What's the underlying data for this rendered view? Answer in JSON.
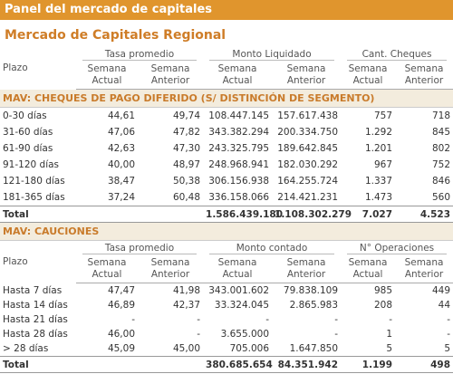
{
  "header": {
    "title": "Panel del mercado de capitales"
  },
  "subtitle": "Mercado de Capitales Regional",
  "sections": [
    {
      "title": "MAV: CHEQUES DE PAGO DIFERIDO (S/ DISTINCIÓN DE SEGMENTO)",
      "row_header": "Plazo",
      "groups": [
        "Tasa promedio",
        "Monto Liquidado",
        "Cant. Cheques"
      ],
      "subheaders": [
        "Semana Actual",
        "Semana Anterior",
        "Semana Actual",
        "Semana Anterior",
        "Semana Actual",
        "Semana Anterior"
      ],
      "rows": [
        [
          "0-30 días",
          "44,61",
          "49,74",
          "108.447.145",
          "157.617.438",
          "757",
          "718"
        ],
        [
          "31-60 días",
          "47,06",
          "47,82",
          "343.382.294",
          "200.334.750",
          "1.292",
          "845"
        ],
        [
          "61-90 días",
          "42,63",
          "47,30",
          "243.325.795",
          "189.642.845",
          "1.201",
          "802"
        ],
        [
          "91-120 días",
          "40,00",
          "48,97",
          "248.968.941",
          "182.030.292",
          "967",
          "752"
        ],
        [
          "121-180 días",
          "38,47",
          "50,38",
          "306.156.938",
          "164.255.724",
          "1.337",
          "846"
        ],
        [
          "181-365 días",
          "37,24",
          "60,48",
          "336.158.066",
          "214.421.231",
          "1.473",
          "560"
        ]
      ],
      "total": [
        "Total",
        null,
        null,
        "1.586.439.180",
        "1.108.302.279",
        "7.027",
        "4.523"
      ]
    },
    {
      "title": "MAV: CAUCIONES",
      "row_header": "Plazo",
      "groups": [
        "Tasa promedio",
        "Monto contado",
        "N° Operaciones"
      ],
      "subheaders": [
        "Semana Actual",
        "Semana Anterior",
        "Semana Actual",
        "Semana Anterior",
        "Semana Actual",
        "Semana Anterior"
      ],
      "rows": [
        [
          "Hasta 7 días",
          "47,47",
          "41,98",
          "343.001.602",
          "79.838.109",
          "985",
          "449"
        ],
        [
          "Hasta 14 días",
          "46,89",
          "42,37",
          "33.324.045",
          "2.865.983",
          "208",
          "44"
        ],
        [
          "Hasta 21 días",
          "-",
          "-",
          "-",
          "-",
          "-",
          "-"
        ],
        [
          "Hasta 28 días",
          "46,00",
          "-",
          "3.655.000",
          "-",
          "1",
          "-"
        ],
        [
          "> 28 días",
          "45,09",
          "45,00",
          "705.006",
          "1.647.850",
          "5",
          "5"
        ]
      ],
      "total": [
        "Total",
        null,
        null,
        "380.685.654",
        "84.351.942",
        "1.199",
        "498"
      ]
    }
  ]
}
